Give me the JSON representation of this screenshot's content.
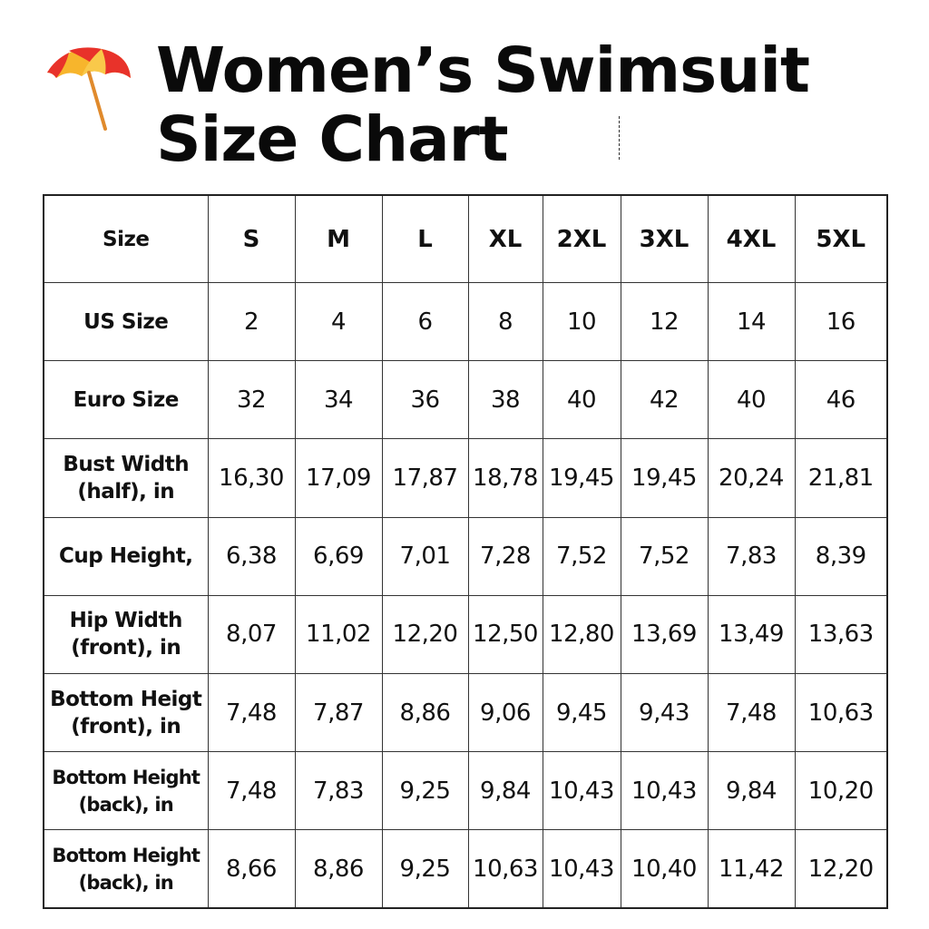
{
  "header": {
    "icon": "beach-umbrella-icon",
    "title_line1": "Women’s Swimsuit",
    "title_line2": "Size Chart"
  },
  "colors": {
    "umbrella_red": "#e8322a",
    "umbrella_yellow": "#f7b52c",
    "umbrella_pole": "#e08a2c",
    "border": "#222222"
  },
  "table": {
    "header_label": "Size",
    "columns": [
      "S",
      "M",
      "L",
      "XL",
      "2XL",
      "3XL",
      "4XL",
      "5XL"
    ],
    "rows": [
      {
        "label": [
          "US Size"
        ],
        "values": [
          "2",
          "4",
          "6",
          "8",
          "10",
          "12",
          "14",
          "16"
        ]
      },
      {
        "label": [
          "Euro Size"
        ],
        "values": [
          "32",
          "34",
          "36",
          "38",
          "40",
          "42",
          "40",
          "46"
        ]
      },
      {
        "label": [
          "Bust Width",
          "(half), in"
        ],
        "values": [
          "16,30",
          "17,09",
          "17,87",
          "18,78",
          "19,45",
          "19,45",
          "20,24",
          "21,81"
        ]
      },
      {
        "label": [
          "Cup Height,"
        ],
        "values": [
          "6,38",
          "6,69",
          "7,01",
          "7,28",
          "7,52",
          "7,52",
          "7,83",
          "8,39"
        ]
      },
      {
        "label": [
          "Hip Width",
          "(front), in"
        ],
        "values": [
          "8,07",
          "11,02",
          "12,20",
          "12,50",
          "12,80",
          "13,69",
          "13,49",
          "13,63"
        ]
      },
      {
        "label": [
          "Bottom Heigt",
          "(front), in"
        ],
        "values": [
          "7,48",
          "7,87",
          "8,86",
          "9,06",
          "9,45",
          "9,43",
          "7,48",
          "10,63"
        ]
      },
      {
        "label": [
          "Bottom Height",
          "(back), in"
        ],
        "values": [
          "7,48",
          "7,83",
          "9,25",
          "9,84",
          "10,43",
          "10,43",
          "9,84",
          "10,20"
        ]
      },
      {
        "label": [
          "Bottom Height",
          "(back), in"
        ],
        "values": [
          "8,66",
          "8,86",
          "9,25",
          "10,63",
          "10,43",
          "10,40",
          "11,42",
          "12,20"
        ]
      }
    ]
  }
}
